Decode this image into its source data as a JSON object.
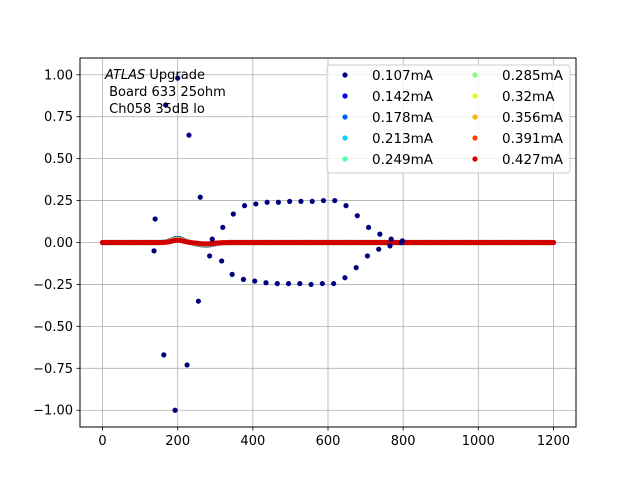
{
  "chart_data": {
    "type": "scatter",
    "title": "",
    "xlabel": "",
    "ylabel": "",
    "xlim": [
      -60,
      1260
    ],
    "ylim": [
      -1.1,
      1.1
    ],
    "x_ticks": [
      0,
      200,
      400,
      600,
      800,
      1000,
      1200
    ],
    "y_ticks": [
      -1.0,
      -0.75,
      -0.5,
      -0.25,
      0.0,
      0.25,
      0.5,
      0.75,
      1.0
    ],
    "x_tick_labels": [
      "0",
      "200",
      "400",
      "600",
      "800",
      "1000",
      "1200"
    ],
    "y_tick_labels": [
      "−1.00",
      "−0.75",
      "−0.50",
      "−0.25",
      "0.00",
      "0.25",
      "0.50",
      "0.75",
      "1.00"
    ],
    "grid": true,
    "legend_position": "top-right",
    "legend_columns": 2,
    "annotation": {
      "line1_italic": "ATLAS",
      "line1_rest": " Upgrade",
      "line2": " Board 633 25ohm",
      "line3": " Ch058 35dB lo"
    },
    "series": [
      {
        "name": "0.107mA",
        "color": "#00007f",
        "sparse_points": [
          [
            137,
            -0.05
          ],
          [
            140,
            0.14
          ],
          [
            163,
            -0.67
          ],
          [
            168,
            0.82
          ],
          [
            193,
            -1.0
          ],
          [
            200,
            0.98
          ],
          [
            225,
            -0.73
          ],
          [
            230,
            0.64
          ],
          [
            255,
            -0.35
          ],
          [
            260,
            0.27
          ],
          [
            285,
            -0.08
          ],
          [
            292,
            0.02
          ],
          [
            317,
            -0.11
          ],
          [
            320,
            0.09
          ],
          [
            345,
            -0.19
          ],
          [
            348,
            0.17
          ],
          [
            375,
            -0.22
          ],
          [
            378,
            0.22
          ],
          [
            405,
            -0.23
          ],
          [
            408,
            0.23
          ],
          [
            435,
            -0.24
          ],
          [
            438,
            0.24
          ],
          [
            465,
            -0.245
          ],
          [
            468,
            0.24
          ],
          [
            495,
            -0.245
          ],
          [
            498,
            0.245
          ],
          [
            525,
            -0.245
          ],
          [
            528,
            0.245
          ],
          [
            555,
            -0.25
          ],
          [
            558,
            0.245
          ],
          [
            585,
            -0.245
          ],
          [
            588,
            0.25
          ],
          [
            615,
            -0.245
          ],
          [
            618,
            0.25
          ],
          [
            645,
            -0.21
          ],
          [
            648,
            0.22
          ],
          [
            675,
            -0.15
          ],
          [
            678,
            0.16
          ],
          [
            705,
            -0.08
          ],
          [
            708,
            0.09
          ],
          [
            735,
            -0.04
          ],
          [
            738,
            0.05
          ],
          [
            765,
            -0.02
          ],
          [
            768,
            0.02
          ],
          [
            795,
            0.0
          ],
          [
            798,
            0.01
          ]
        ]
      },
      {
        "name": "0.142mA",
        "color": "#0000f1"
      },
      {
        "name": "0.178mA",
        "color": "#0060ff"
      },
      {
        "name": "0.213mA",
        "color": "#00d4ff"
      },
      {
        "name": "0.249mA",
        "color": "#4cffaa"
      },
      {
        "name": "0.285mA",
        "color": "#7fff7a"
      },
      {
        "name": "0.32mA",
        "color": "#d4ff22"
      },
      {
        "name": "0.356mA",
        "color": "#ffb000"
      },
      {
        "name": "0.391mA",
        "color": "#ff4300"
      },
      {
        "name": "0.427mA",
        "color": "#d10000"
      }
    ],
    "baseline": {
      "x_start": 0,
      "x_end": 1200,
      "x_step": 6.25,
      "value": 0.0,
      "bump_x_center": 200,
      "bump_amplitude": 0.025,
      "dip_x_center": 275,
      "dip_amplitude": -0.015
    }
  }
}
